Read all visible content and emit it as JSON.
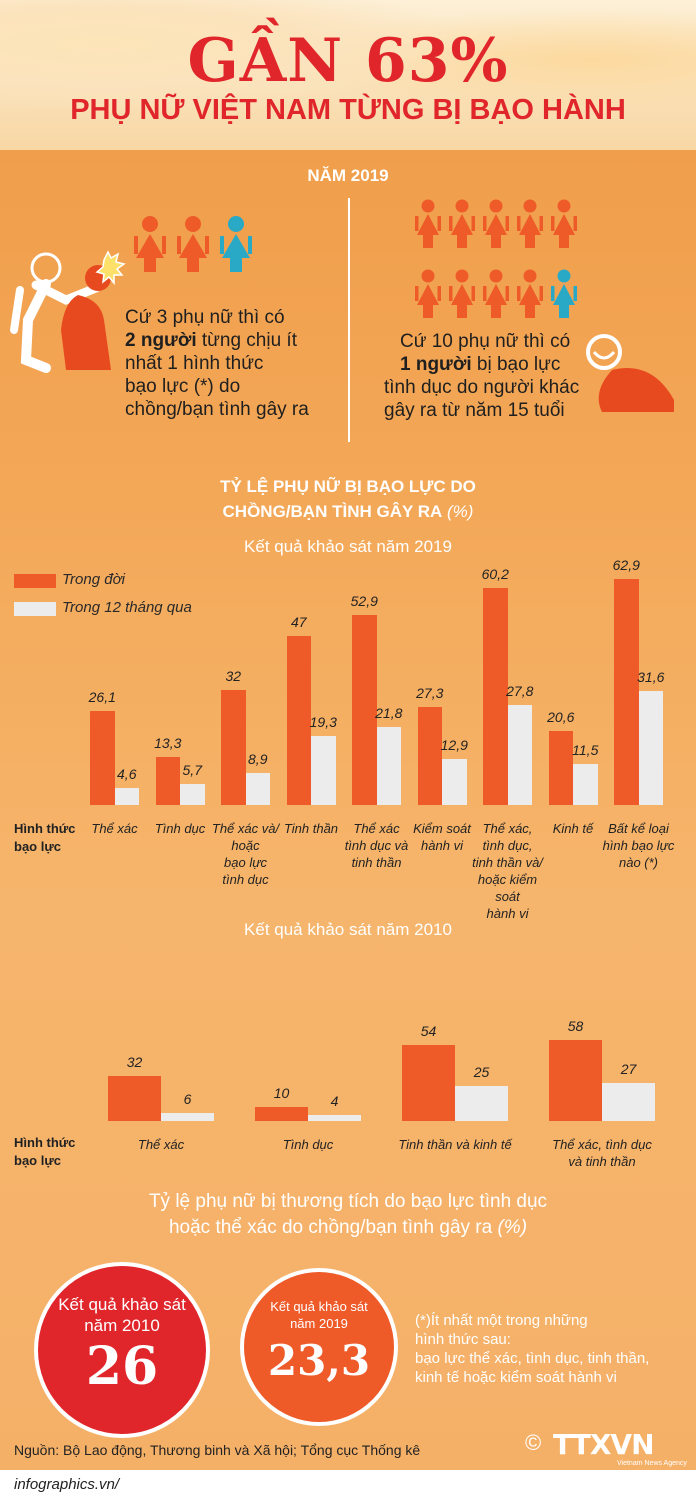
{
  "header": {
    "title": "GẦN 63%",
    "subtitle": "PHỤ NỮ VIỆT NAM TỪNG BỊ BẠO HÀNH"
  },
  "year_label": "NĂM 2019",
  "stat_left": {
    "line1": "Cứ 3 phụ nữ thì có",
    "line2_bold": "2 người",
    "line2_rest": " từng chịu ít",
    "line3": "nhất 1 hình thức",
    "line4": "bạo lực (*) do",
    "line5": "chồng/bạn tình gây ra"
  },
  "stat_right": {
    "line1": "Cứ 10 phụ nữ thì có",
    "line2_bold": "1 người",
    "line2_rest": " bị bạo lực",
    "line3": "tình dục do người khác",
    "line4": "gây ra từ năm 15 tuổi"
  },
  "section_title": {
    "line1": "TỶ LỆ PHỤ NỮ BỊ BẠO LỰC DO",
    "line2": "CHỒNG/BẠN TÌNH GÂY RA",
    "unit": " (%)"
  },
  "colors": {
    "lifetime": "#ee5a28",
    "last12": "#ececec",
    "red": "#e0262b",
    "orange_circle": "#ee5a28"
  },
  "chart_data": [
    {
      "type": "bar",
      "title": "Kết quả khảo sát năm 2019",
      "xlabel": "Hình thức bạo lực",
      "categories": [
        "Thể xác",
        "Tình dục",
        "Thể xác và/ hoặc bạo lực tình dục",
        "Tinh thần",
        "Thể xác tình dục và tinh thần",
        "Kiểm soát hành vi",
        "Thể xác, tình dục, tinh thần và/ hoặc kiểm soát hành vi",
        "Kinh tế",
        "Bất kể loại hình bạo lực nào (*)"
      ],
      "category_lines": [
        [
          "Thể xác"
        ],
        [
          "Tình dục"
        ],
        [
          "Thể xác và/",
          "hoặc",
          "bạo lực",
          "tình dục"
        ],
        [
          "Tinh thần"
        ],
        [
          "Thể xác",
          "tình dục và",
          "tinh thần"
        ],
        [
          "Kiểm soát",
          "hành vi"
        ],
        [
          "Thể xác,",
          "tình dục,",
          "tinh thần và/",
          "hoặc kiểm soát",
          "hành vi"
        ],
        [
          "Kinh tế"
        ],
        [
          "Bất kể loại",
          "hình bạo lực",
          "nào (*)"
        ]
      ],
      "series": [
        {
          "name": "Trong đời",
          "values": [
            26.1,
            13.3,
            32,
            47,
            52.9,
            27.3,
            60.2,
            20.6,
            62.9
          ],
          "labels": [
            "26,1",
            "13,3",
            "32",
            "47",
            "52,9",
            "27,3",
            "60,2",
            "20,6",
            "62,9"
          ]
        },
        {
          "name": "Trong 12 tháng qua",
          "values": [
            4.6,
            5.7,
            8.9,
            19.3,
            21.8,
            12.9,
            27.8,
            11.5,
            31.6
          ],
          "labels": [
            "4,6",
            "5,7",
            "8,9",
            "19,3",
            "21,8",
            "12,9",
            "27,8",
            "11,5",
            "31,6"
          ]
        }
      ]
    },
    {
      "type": "bar",
      "title": "Kết quả khảo sát năm 2010",
      "xlabel": "Hình thức bạo lực",
      "categories": [
        "Thể xác",
        "Tình dục",
        "Tinh thần và kinh tế",
        "Thể xác, tình dục và tinh thần"
      ],
      "category_lines": [
        [
          "Thể xác"
        ],
        [
          "Tình dục"
        ],
        [
          "Tinh thần và kinh tế"
        ],
        [
          "Thể xác, tình dục",
          "và tinh thần"
        ]
      ],
      "series": [
        {
          "name": "Trong đời",
          "values": [
            32,
            10,
            54,
            58
          ],
          "labels": [
            "32",
            "10",
            "54",
            "58"
          ]
        },
        {
          "name": "Trong 12 tháng qua",
          "values": [
            6,
            4,
            25,
            27
          ],
          "labels": [
            "6",
            "4",
            "25",
            "27"
          ]
        }
      ]
    }
  ],
  "axis_label": {
    "line1": "Hình thức",
    "line2": "bạo lực"
  },
  "injury": {
    "title_line1": "Tỷ lệ phụ nữ bị thương tích do bạo lực tình dục",
    "title_line2": "hoặc thể xác do chồng/bạn tình gây ra",
    "unit": " (%)",
    "circle_2010": {
      "label1": "Kết quả khảo sát",
      "label2": "năm 2010",
      "value": "26"
    },
    "circle_2019": {
      "label1": "Kết quả khảo sát",
      "label2": "năm 2019",
      "value": "23,3"
    }
  },
  "footnote": {
    "line1": "(*)Ít nhất một trong những",
    "line2": "hình thức sau:",
    "line3": "bạo lực thể xác, tình dục, tinh thần,",
    "line4": "kinh tế hoặc kiểm soát hành vi"
  },
  "source": "Nguồn: Bộ Lao động, Thương binh và Xã hội; Tổng cục Thống kê",
  "site": "infographics.vn/",
  "logo": {
    "text": "TTXVN",
    "sub": "Vietnam News Agency",
    "copyright": "©"
  }
}
